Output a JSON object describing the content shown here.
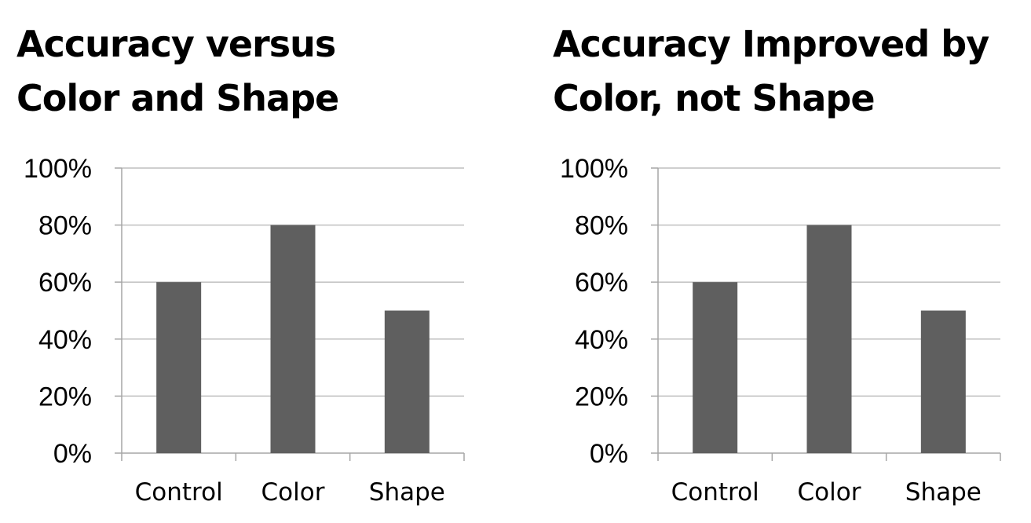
{
  "colors": {
    "bar": "#5f5f5f",
    "grid": "#bfbfbf",
    "axis": "#a6a6a6"
  },
  "chart_data": [
    {
      "type": "bar",
      "title": [
        "Accuracy versus",
        "Color and Shape"
      ],
      "categories": [
        "Control",
        "Color",
        "Shape"
      ],
      "values": [
        0.6,
        0.8,
        0.5
      ],
      "yticks": [
        "0%",
        "20%",
        "40%",
        "60%",
        "80%",
        "100%"
      ],
      "ylim": [
        0,
        1
      ],
      "grid": true,
      "legend": "none"
    },
    {
      "type": "bar",
      "title": [
        "Accuracy Improved by",
        "Color, not Shape"
      ],
      "categories": [
        "Control",
        "Color",
        "Shape"
      ],
      "values": [
        0.6,
        0.8,
        0.5
      ],
      "yticks": [
        "0%",
        "20%",
        "40%",
        "60%",
        "80%",
        "100%"
      ],
      "ylim": [
        0,
        1
      ],
      "grid": true,
      "legend": "none"
    }
  ]
}
